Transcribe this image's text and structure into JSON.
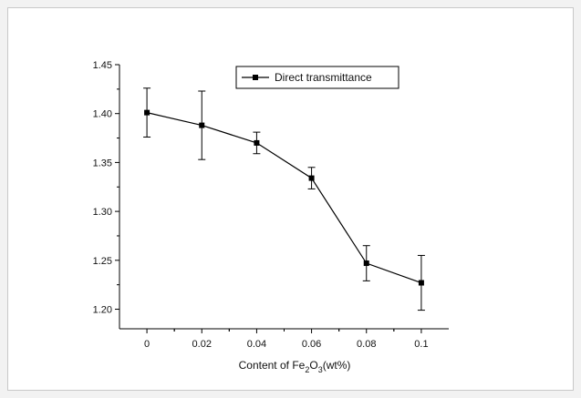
{
  "chart_data": {
    "type": "line",
    "x": [
      0,
      0.02,
      0.04,
      0.06,
      0.08,
      0.1
    ],
    "x_tick_labels": [
      "0",
      "0.02",
      "0.04",
      "0.06",
      "0.08",
      "0.1"
    ],
    "series": [
      {
        "name": "Direct transmittance",
        "values": [
          1.401,
          1.388,
          1.37,
          1.334,
          1.247,
          1.227
        ],
        "error": [
          0.025,
          0.035,
          0.011,
          0.011,
          0.018,
          0.028
        ],
        "color": "#000000",
        "marker": "square"
      }
    ],
    "y_ticks": [
      1.2,
      1.25,
      1.3,
      1.35,
      1.4,
      1.45
    ],
    "y_tick_labels": [
      "1.20",
      "1.25",
      "1.30",
      "1.35",
      "1.40",
      "1.45"
    ],
    "ylim": [
      1.18,
      1.45
    ],
    "xlim": [
      -0.01,
      0.11
    ],
    "xlabel": {
      "prefix": "Content of Fe",
      "sub1": "2",
      "mid": "O",
      "sub2": "3",
      "suffix": "(wt%)"
    },
    "ylabel": "",
    "grid": false,
    "legend_position": "top-center"
  }
}
